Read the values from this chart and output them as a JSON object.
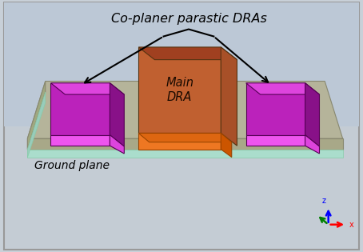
{
  "bg_gradient_top": "#b0bac8",
  "bg_gradient_bot": "#d0d8e0",
  "border_color": "#999999",
  "title_text": "Co-planer parastic DRAs",
  "title_fontsize": 11.5,
  "ground_label": "Ground plane",
  "ground_label_fontsize": 10,
  "main_dra_label": "Main\nDRA",
  "main_dra_label_fontsize": 10.5,
  "ground_top_color": "#b5b49a",
  "ground_edge_color": "#888870",
  "ground_front_color": "#a8a888",
  "ground_mint_color": "#aaddcc",
  "main_dra_front_color": "#c06030",
  "main_dra_top_color": "#a04020",
  "main_dra_right_color": "#a85028",
  "orange_front_color": "#ee7722",
  "orange_top_color": "#dd6611",
  "parasitic_front_color": "#bb22bb",
  "parasitic_top_color": "#dd44dd",
  "parasitic_right_color": "#881188",
  "parasitic_bottom_color": "#ee55ee"
}
